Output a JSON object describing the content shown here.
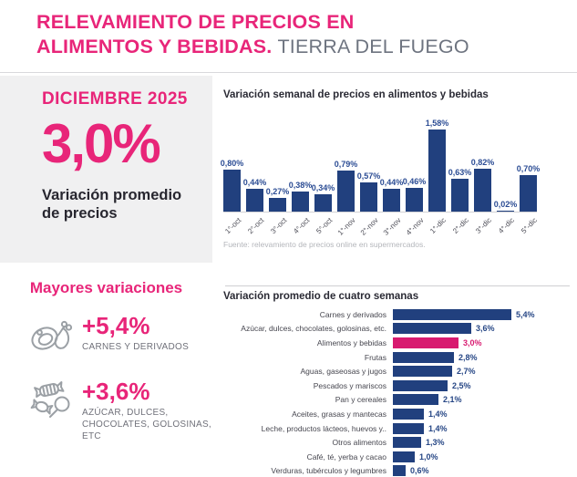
{
  "header": {
    "line1": "RELEVAMIENTO DE PRECIOS EN",
    "line2_accent": "ALIMENTOS Y BEBIDAS.",
    "line2_rest": "TIERRA DEL FUEGO"
  },
  "summary": {
    "period": "DICIEMBRE 2025",
    "value": "3,0%",
    "caption": "Variación promedio de precios"
  },
  "source": "Fuente: relevamiento de precios online en supermercados.",
  "highlights": {
    "title": "Mayores variaciones",
    "items": [
      {
        "icon": "meat-icon",
        "value": "+5,4%",
        "label": "CARNES Y DERIVADOS"
      },
      {
        "icon": "candy-icon",
        "value": "+3,6%",
        "label": "AZÚCAR, DULCES, CHOCOLATES, GOLOSINAS, ETC"
      }
    ]
  },
  "chart_data": [
    {
      "type": "bar",
      "title": "Variación semanal de precios en alimentos y bebidas",
      "categories": [
        "1°-oct",
        "2°-oct",
        "3°-oct",
        "4°-oct",
        "5°-oct",
        "1°-nov",
        "2°-nov",
        "3°-nov",
        "4°-nov",
        "1°-dic",
        "2°-dic",
        "3°-dic",
        "4°-dic",
        "5°-dic"
      ],
      "values": [
        0.8,
        0.44,
        0.27,
        0.38,
        0.34,
        0.79,
        0.57,
        0.44,
        0.46,
        1.58,
        0.63,
        0.82,
        0.02,
        0.7
      ],
      "value_labels": [
        "0,80%",
        "0,44%",
        "0,27%",
        "0,38%",
        "0,34%",
        "0,79%",
        "0,57%",
        "0,44%",
        "0,46%",
        "1,58%",
        "0,63%",
        "0,82%",
        "0,02%",
        "0,70%"
      ],
      "xlabel": "",
      "ylabel": "",
      "unit": "%",
      "ylim": [
        0,
        1.75
      ],
      "grid": false,
      "legend": "none"
    },
    {
      "type": "bar",
      "orientation": "horizontal",
      "title": "Variación promedio de cuatro semanas",
      "categories": [
        "Carnes y derivados",
        "Azúcar, dulces, chocolates, golosinas, etc.",
        "Alimentos y bebidas",
        "Frutas",
        "Aguas, gaseosas y jugos",
        "Pescados y mariscos",
        "Pan y cereales",
        "Aceites, grasas y mantecas",
        "Leche, productos lácteos, huevos y..",
        "Otros alimentos",
        "Café, té, yerba y  cacao",
        "Verduras, tubérculos y legumbres"
      ],
      "values": [
        5.4,
        3.6,
        3.0,
        2.8,
        2.7,
        2.5,
        2.1,
        1.4,
        1.4,
        1.3,
        1.0,
        0.6
      ],
      "value_labels": [
        "5,4%",
        "3,6%",
        "3,0%",
        "2,8%",
        "2,7%",
        "2,5%",
        "2,1%",
        "1,4%",
        "1,4%",
        "1,3%",
        "1,0%",
        "0,6%"
      ],
      "highlight_index": 2,
      "xlabel": "",
      "ylabel": "",
      "unit": "%",
      "xlim": [
        0,
        6
      ],
      "grid": false,
      "legend": "none"
    }
  ],
  "colors": {
    "pink": "#e82579",
    "pink_bar": "#d81a70",
    "bar_blue": "#21407e",
    "value_blue": "#2b4c94",
    "value_blue_h": "#264685",
    "panel_gray": "#f0f0f1",
    "text_dark": "#27262f",
    "gray_medium": "#6e7480",
    "gray_faint": "#b4b6bb"
  }
}
